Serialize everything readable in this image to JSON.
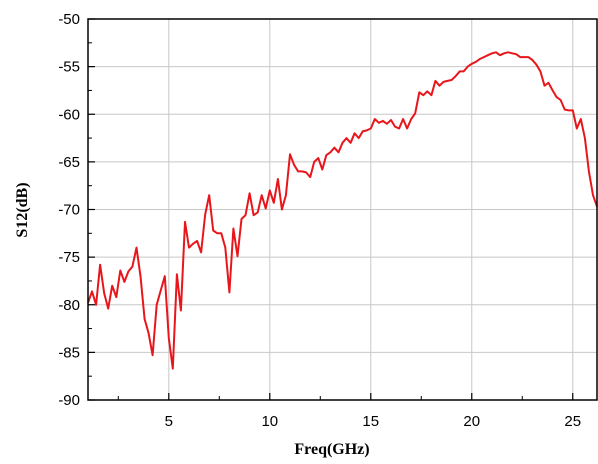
{
  "chart_data": {
    "type": "line",
    "xlabel": "Freq(GHz)",
    "ylabel": "S12(dB)",
    "xlim": [
      1,
      26.2
    ],
    "ylim": [
      -90,
      -50
    ],
    "x_ticks": [
      5,
      10,
      15,
      20,
      25
    ],
    "y_ticks": [
      -90,
      -85,
      -80,
      -75,
      -70,
      -65,
      -60,
      -55,
      -50
    ],
    "grid": true,
    "line_color": "#e8161b",
    "series": [
      {
        "x": [
          1.0,
          1.2,
          1.4,
          1.6,
          1.8,
          2.0,
          2.2,
          2.4,
          2.6,
          2.8,
          3.0,
          3.2,
          3.4,
          3.6,
          3.8,
          4.0,
          4.2,
          4.4,
          4.6,
          4.8,
          5.0,
          5.2,
          5.4,
          5.6,
          5.8,
          6.0,
          6.2,
          6.4,
          6.6,
          6.8,
          7.0,
          7.2,
          7.4,
          7.6,
          7.8,
          8.0,
          8.2,
          8.4,
          8.6,
          8.8,
          9.0,
          9.2,
          9.4,
          9.6,
          9.8,
          10.0,
          10.2,
          10.4,
          10.6,
          10.8,
          11.0,
          11.2,
          11.4,
          11.6,
          11.8,
          12.0,
          12.2,
          12.4,
          12.6,
          12.8,
          13.0,
          13.2,
          13.4,
          13.6,
          13.8,
          14.0,
          14.2,
          14.4,
          14.6,
          14.8,
          15.0,
          15.2,
          15.4,
          15.6,
          15.8,
          16.0,
          16.2,
          16.4,
          16.6,
          16.8,
          17.0,
          17.2,
          17.4,
          17.6,
          17.8,
          18.0,
          18.2,
          18.4,
          18.6,
          18.8,
          19.0,
          19.2,
          19.4,
          19.6,
          19.8,
          20.0,
          20.2,
          20.4,
          20.6,
          20.8,
          21.0,
          21.2,
          21.4,
          21.6,
          21.8,
          22.0,
          22.2,
          22.4,
          22.6,
          22.8,
          23.0,
          23.2,
          23.4,
          23.6,
          23.8,
          24.0,
          24.2,
          24.4,
          24.6,
          24.8,
          25.0,
          25.2,
          25.4,
          25.6,
          25.8,
          26.0,
          26.2
        ],
        "y": [
          -79.8,
          -78.6,
          -80.0,
          -75.8,
          -78.8,
          -80.4,
          -78.0,
          -79.2,
          -76.4,
          -77.6,
          -76.5,
          -76.0,
          -74.0,
          -77.0,
          -81.5,
          -83.0,
          -85.3,
          -80.0,
          -78.5,
          -77.0,
          -83.5,
          -86.7,
          -76.8,
          -80.6,
          -71.3,
          -74.0,
          -73.6,
          -73.3,
          -74.5,
          -70.5,
          -68.5,
          -72.2,
          -72.5,
          -72.5,
          -74.0,
          -78.7,
          -72.0,
          -74.9,
          -71.0,
          -70.6,
          -68.3,
          -70.6,
          -70.3,
          -68.5,
          -69.9,
          -68.0,
          -69.3,
          -66.8,
          -70.0,
          -68.5,
          -64.2,
          -65.3,
          -66.0,
          -66.0,
          -66.1,
          -66.6,
          -65.0,
          -64.6,
          -65.8,
          -64.3,
          -64.0,
          -63.5,
          -64.0,
          -63.0,
          -62.5,
          -63.0,
          -62.0,
          -62.5,
          -61.8,
          -61.7,
          -61.5,
          -60.5,
          -60.9,
          -60.7,
          -61.0,
          -60.6,
          -61.3,
          -61.5,
          -60.5,
          -61.5,
          -60.5,
          -59.9,
          -57.7,
          -58.0,
          -57.6,
          -58.0,
          -56.5,
          -57.0,
          -56.6,
          -56.5,
          -56.4,
          -56.0,
          -55.5,
          -55.5,
          -55.0,
          -54.7,
          -54.5,
          -54.2,
          -54.0,
          -53.8,
          -53.6,
          -53.5,
          -53.8,
          -53.6,
          -53.5,
          -53.6,
          -53.7,
          -54.0,
          -54.0,
          -54.0,
          -54.3,
          -54.8,
          -55.5,
          -57.0,
          -56.7,
          -57.5,
          -58.2,
          -58.5,
          -59.5,
          -59.6,
          -59.6,
          -61.5,
          -60.5,
          -62.5,
          -66.0,
          -68.5,
          -69.7
        ]
      }
    ]
  }
}
